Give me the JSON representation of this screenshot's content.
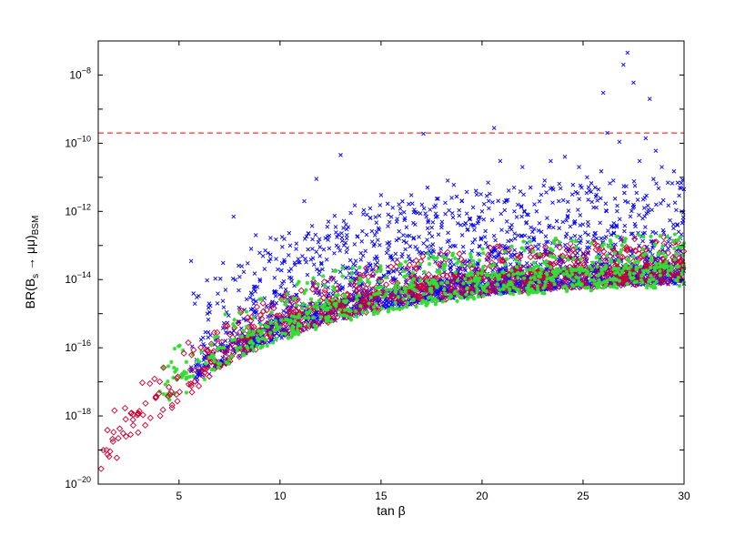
{
  "chart_data": {
    "type": "scatter",
    "xlabel": "tan β",
    "ylabel": {
      "main": "BR(B",
      "sub_s": "s",
      "arrow": " → μμ)",
      "sub_bsm": "BSM"
    },
    "xlim": [
      1,
      30
    ],
    "ylim": [
      1e-20,
      1e-07
    ],
    "yscale": "log",
    "grid": false,
    "x_ticks": [
      {
        "value": 5,
        "label": "5"
      },
      {
        "value": 10,
        "label": "10"
      },
      {
        "value": 15,
        "label": "15"
      },
      {
        "value": 20,
        "label": "20"
      },
      {
        "value": 25,
        "label": "25"
      },
      {
        "value": 30,
        "label": "30"
      }
    ],
    "y_ticks": [
      {
        "exp": -20,
        "base": "10",
        "sup": "−20"
      },
      {
        "exp": -18,
        "base": "10",
        "sup": "−18"
      },
      {
        "exp": -16,
        "base": "10",
        "sup": "−16"
      },
      {
        "exp": -14,
        "base": "10",
        "sup": "−14"
      },
      {
        "exp": -12,
        "base": "10",
        "sup": "−12"
      },
      {
        "exp": -10,
        "base": "10",
        "sup": "−10"
      },
      {
        "exp": -8,
        "base": "10",
        "sup": "−8"
      }
    ],
    "reference_line": {
      "y": 2e-10,
      "color": "#ff0000",
      "style": "dashed"
    },
    "series": [
      {
        "marker": "x",
        "color": "#0000ff",
        "points": [
          [
            5.6,
            3.5e-14
          ],
          [
            6.4,
            1e-15
          ],
          [
            6.9,
            2e-15
          ],
          [
            7.3,
            5e-15
          ],
          [
            7.7,
            7e-13
          ],
          [
            8.0,
            1.2e-14
          ],
          [
            8.4,
            3e-14
          ],
          [
            8.8,
            2e-13
          ],
          [
            9.0,
            1e-14
          ],
          [
            9.4,
            6e-14
          ],
          [
            9.8,
            1.5e-13
          ],
          [
            10.1,
            3e-14
          ],
          [
            10.5,
            1e-13
          ],
          [
            10.9,
            4e-14
          ],
          [
            11.2,
            2e-12
          ],
          [
            11.6,
            8e-14
          ],
          [
            11.8,
            9e-12
          ],
          [
            12.1,
            2e-14
          ],
          [
            12.4,
            5e-13
          ],
          [
            12.8,
            1e-13
          ],
          [
            13.0,
            4.5e-11
          ],
          [
            13.3,
            3e-13
          ],
          [
            13.7,
            1.5e-12
          ],
          [
            14.0,
            6e-14
          ],
          [
            14.3,
            8e-13
          ],
          [
            14.7,
            2e-13
          ],
          [
            15.0,
            3e-12
          ],
          [
            15.4,
            1e-13
          ],
          [
            15.8,
            6e-13
          ],
          [
            16.1,
            2e-13
          ],
          [
            16.5,
            3e-12
          ],
          [
            16.8,
            9e-13
          ],
          [
            17.1,
            1.9e-10
          ],
          [
            17.3,
            5e-12
          ],
          [
            17.7,
            1.5e-12
          ],
          [
            18.0,
            4e-13
          ],
          [
            18.3,
            8e-12
          ],
          [
            18.6,
            6e-12
          ],
          [
            19.0,
            2e-12
          ],
          [
            19.3,
            3e-13
          ],
          [
            19.7,
            4e-12
          ],
          [
            20.0,
            1e-12
          ],
          [
            20.3,
            7e-12
          ],
          [
            20.6,
            2.8e-10
          ],
          [
            20.9,
            3e-11
          ],
          [
            21.2,
            2e-12
          ],
          [
            21.6,
            1e-12
          ],
          [
            22.0,
            2e-11
          ],
          [
            22.4,
            5e-12
          ],
          [
            22.7,
            1e-12
          ],
          [
            23.1,
            8e-12
          ],
          [
            23.4,
            3e-11
          ],
          [
            23.8,
            2e-12
          ],
          [
            24.1,
            4e-11
          ],
          [
            24.5,
            6e-12
          ],
          [
            24.8,
            2e-11
          ],
          [
            25.2,
            1e-11
          ],
          [
            25.6,
            5e-12
          ],
          [
            25.9,
            1.5e-11
          ],
          [
            26.0,
            3e-09
          ],
          [
            26.2,
            2e-10
          ],
          [
            26.5,
            8e-12
          ],
          [
            26.8,
            1.1e-10
          ],
          [
            27.0,
            2e-08
          ],
          [
            27.2,
            4.5e-08
          ],
          [
            27.5,
            6e-09
          ],
          [
            27.8,
            3e-11
          ],
          [
            28.1,
            1.4e-10
          ],
          [
            28.3,
            2e-09
          ],
          [
            28.6,
            6e-11
          ],
          [
            28.9,
            2e-11
          ],
          [
            29.2,
            7e-12
          ],
          [
            29.5,
            1.5e-11
          ],
          [
            29.8,
            5e-12
          ]
        ]
      }
    ],
    "bands": [
      {
        "marker": "x",
        "color": "#0000ff",
        "x_from": 5.6,
        "x_to": 30,
        "count": 2600,
        "spread_lo": 0.5,
        "spread_hi": 2.6
      },
      {
        "marker": "diamond",
        "color": "#cc0033",
        "x_from": 6,
        "x_to": 30,
        "count": 900,
        "spread_lo": 0.5,
        "spread_hi": 0.9
      },
      {
        "marker": "star",
        "color": "#33dd33",
        "x_from": 4,
        "x_to": 30,
        "count": 800,
        "spread_lo": 0.6,
        "spread_hi": 1.0
      },
      {
        "marker": "diamond",
        "color": "#cc0033",
        "x_from": 1.1,
        "x_to": 6.5,
        "count": 70,
        "spread_lo": 0.7,
        "spread_hi": 0.9
      }
    ]
  }
}
